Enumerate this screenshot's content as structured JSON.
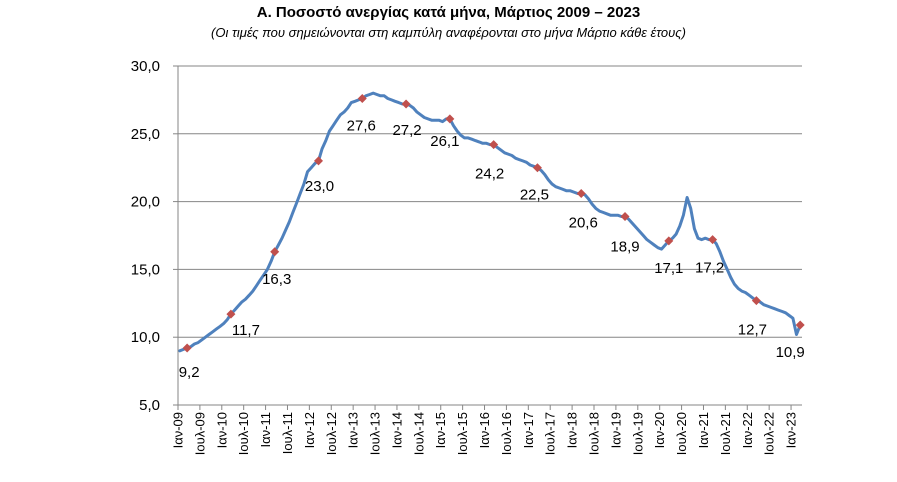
{
  "chart_data": {
    "type": "line",
    "title": "Α. Ποσοστό ανεργίας κατά μήνα, Μάρτιος 2009 – 2023",
    "subtitle": "(Οι τιμές που σημειώνονται στη καμπύλη αναφέρονται στο μήνα Μάρτιο κάθε έτους)",
    "xlabel": "",
    "ylabel": "",
    "ylim": [
      5.0,
      30.0
    ],
    "yticks": [
      "5,0",
      "10,0",
      "15,0",
      "20,0",
      "25,0",
      "30,0"
    ],
    "grid": true,
    "line_color": "#4F81BD",
    "marker_color": "#C0504D",
    "x_tick_labels": [
      "Ιαν-09",
      "Ιουλ-09",
      "Ιαν-10",
      "Ιουλ-10",
      "Ιαν-11",
      "Ιουλ-11",
      "Ιαν-12",
      "Ιουλ-12",
      "Ιαν-13",
      "Ιουλ-13",
      "Ιαν-14",
      "Ιουλ-14",
      "Ιαν-15",
      "Ιουλ-15",
      "Ιαν-16",
      "Ιουλ-16",
      "Ιαν-17",
      "Ιουλ-17",
      "Ιαν-18",
      "Ιουλ-18",
      "Ιαν-19",
      "Ιουλ-19",
      "Ιαν-20",
      "Ιουλ-20",
      "Ιαν-21",
      "Ιουλ-21",
      "Ιαν-22",
      "Ιουλ-22",
      "Ιαν-23"
    ],
    "series": [
      {
        "name": "Ποσοστό ανεργίας",
        "start": "2009-01",
        "values": [
          9.0,
          9.1,
          9.2,
          9.3,
          9.5,
          9.6,
          9.8,
          10.0,
          10.2,
          10.4,
          10.6,
          10.8,
          11.0,
          11.3,
          11.7,
          12.0,
          12.3,
          12.6,
          12.8,
          13.1,
          13.4,
          13.8,
          14.2,
          14.6,
          15.0,
          15.6,
          16.3,
          16.8,
          17.3,
          17.9,
          18.5,
          19.2,
          19.9,
          20.6,
          21.3,
          22.2,
          22.5,
          22.8,
          23.0,
          23.9,
          24.5,
          25.2,
          25.6,
          26.0,
          26.4,
          26.6,
          26.9,
          27.3,
          27.4,
          27.5,
          27.6,
          27.8,
          27.9,
          28.0,
          27.9,
          27.8,
          27.8,
          27.6,
          27.5,
          27.4,
          27.3,
          27.2,
          27.2,
          27.1,
          26.9,
          26.6,
          26.4,
          26.2,
          26.1,
          26.0,
          26.0,
          26.0,
          25.9,
          26.1,
          26.1,
          25.6,
          25.2,
          24.9,
          24.7,
          24.7,
          24.6,
          24.5,
          24.4,
          24.3,
          24.3,
          24.2,
          24.2,
          24.0,
          23.8,
          23.6,
          23.5,
          23.4,
          23.2,
          23.1,
          23.0,
          22.9,
          22.7,
          22.6,
          22.5,
          22.3,
          22.0,
          21.6,
          21.3,
          21.1,
          21.0,
          20.9,
          20.8,
          20.8,
          20.7,
          20.6,
          20.6,
          20.5,
          20.2,
          19.8,
          19.5,
          19.3,
          19.2,
          19.1,
          19.0,
          19.0,
          19.0,
          18.9,
          18.9,
          18.7,
          18.4,
          18.1,
          17.8,
          17.5,
          17.2,
          17.0,
          16.8,
          16.6,
          16.5,
          16.8,
          17.1,
          17.3,
          17.6,
          18.2,
          19.0,
          20.3,
          19.5,
          18.0,
          17.3,
          17.2,
          17.3,
          17.2,
          17.2,
          16.9,
          16.3,
          15.6,
          15.0,
          14.4,
          13.9,
          13.6,
          13.4,
          13.3,
          13.1,
          12.9,
          12.7,
          12.6,
          12.4,
          12.3,
          12.2,
          12.1,
          12.0,
          11.9,
          11.8,
          11.6,
          11.4,
          10.2,
          10.9
        ]
      }
    ],
    "annotations": [
      {
        "date": "2009-03",
        "value": 9.2,
        "label": "9,2"
      },
      {
        "date": "2010-03",
        "value": 11.7,
        "label": "11,7"
      },
      {
        "date": "2011-03",
        "value": 16.3,
        "label": "16,3"
      },
      {
        "date": "2012-03",
        "value": 23.0,
        "label": "23,0"
      },
      {
        "date": "2013-03",
        "value": 27.6,
        "label": "27,6"
      },
      {
        "date": "2014-03",
        "value": 27.2,
        "label": "27,2"
      },
      {
        "date": "2015-03",
        "value": 26.1,
        "label": "26,1"
      },
      {
        "date": "2016-03",
        "value": 24.2,
        "label": "24,2"
      },
      {
        "date": "2017-03",
        "value": 22.5,
        "label": "22,5"
      },
      {
        "date": "2018-03",
        "value": 20.6,
        "label": "20,6"
      },
      {
        "date": "2019-03",
        "value": 18.9,
        "label": "18,9"
      },
      {
        "date": "2020-03",
        "value": 17.1,
        "label": "17,1"
      },
      {
        "date": "2021-03",
        "value": 17.2,
        "label": "17,2"
      },
      {
        "date": "2022-03",
        "value": 12.7,
        "label": "12,7"
      },
      {
        "date": "2023-03",
        "value": 10.9,
        "label": "10,9"
      }
    ]
  }
}
